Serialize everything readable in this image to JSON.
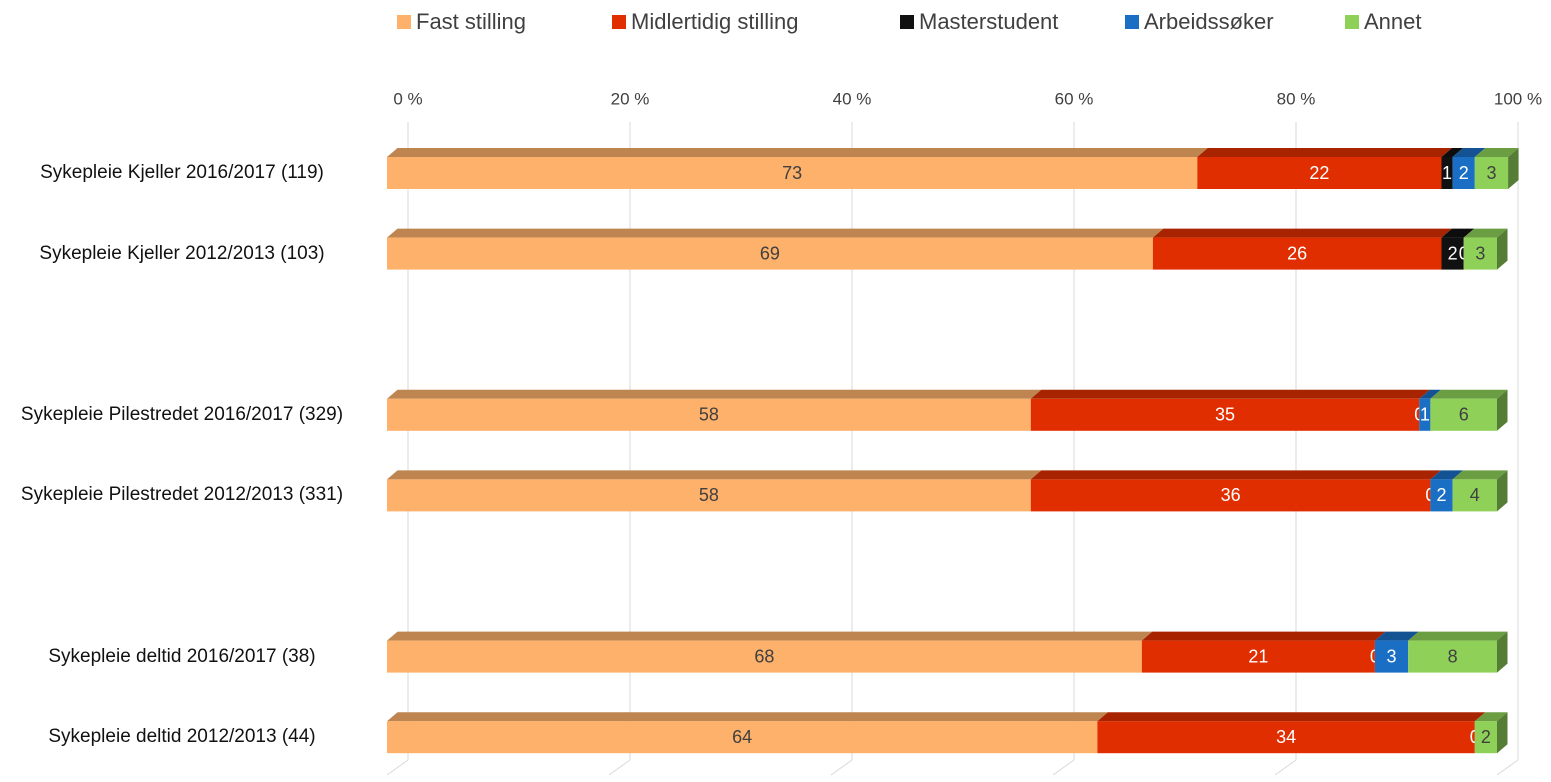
{
  "chart_data": {
    "type": "stacked_bar_horizontal",
    "categories": [
      "Sykepleie Kjeller 2016/2017 (119)",
      "Sykepleie Kjeller 2012/2013 (103)",
      null,
      "Sykepleie Pilestredet 2016/2017 (329)",
      "Sykepleie Pilestredet 2012/2013 (331)",
      null,
      "Sykepleie deltid 2016/2017 (38)",
      "Sykepleie deltid 2012/2013 (44)"
    ],
    "series": [
      {
        "name": "Fast stilling",
        "color": "#fdb16b",
        "values": [
          73,
          69,
          null,
          58,
          58,
          null,
          68,
          64
        ]
      },
      {
        "name": "Midlertidig stilling",
        "color": "#e02e00",
        "values": [
          22,
          26,
          null,
          35,
          36,
          null,
          21,
          34
        ]
      },
      {
        "name": "Masterstudent",
        "color": "#111111",
        "values": [
          1,
          2,
          null,
          0,
          0,
          null,
          0,
          0
        ]
      },
      {
        "name": "Arbeidssøker",
        "color": "#1a6fc4",
        "values": [
          2,
          0,
          null,
          1,
          2,
          null,
          3,
          null
        ]
      },
      {
        "name": "Annet",
        "color": "#8fd158",
        "values": [
          3,
          3,
          null,
          6,
          4,
          null,
          8,
          2
        ]
      }
    ],
    "xlim": [
      0,
      100
    ],
    "xticks": [
      {
        "value": 0,
        "label": "0 %"
      },
      {
        "value": 20,
        "label": "20 %"
      },
      {
        "value": 40,
        "label": "40 %"
      },
      {
        "value": 60,
        "label": "60 %"
      },
      {
        "value": 80,
        "label": "80 %"
      },
      {
        "value": 100,
        "label": "100 %"
      }
    ],
    "grid": true,
    "legend": "top"
  }
}
